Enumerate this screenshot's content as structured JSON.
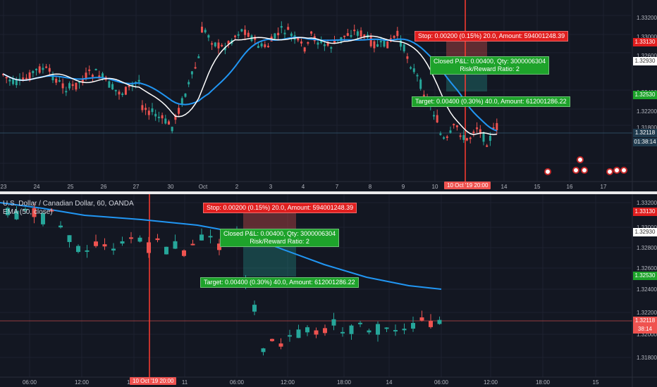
{
  "colors": {
    "bg": "#131722",
    "up": "#26a69a",
    "down": "#ef5350",
    "ema": "#2196f3",
    "sma": "#ffffff",
    "grid": "#1e2230",
    "divider": "#e9e9ea",
    "stop": "#e01f1f",
    "target": "#1ea32b",
    "vline": "#ff3b30"
  },
  "top_pane": {
    "price_scale": [
      "1.33200",
      "1.33000",
      "1.32600",
      "1.32400",
      "1.32200",
      "1.31800"
    ],
    "badges": {
      "stop": "1.33130",
      "entry": "1.32930",
      "target": "1.32530",
      "last": "1.32118",
      "countdown": "01:38:14"
    },
    "x_axis": [
      "23",
      "24",
      "25",
      "26",
      "27",
      "30",
      "Oct",
      "2",
      "3",
      "4",
      "7",
      "8",
      "9",
      "10",
      "10 Oct '19  20:00",
      "14",
      "15",
      "16",
      "17"
    ],
    "stop_label": "Stop: 0.00200 (0.15%) 20.0, Amount: 594001248.39",
    "closed_label": "Closed P&L: 0.00400, Qty: 3000006304",
    "rr_label": "Risk/Reward Ratio: 2",
    "target_label": "Target: 0.00400 (0.30%) 40.0, Amount: 612001286.22",
    "event_icons": [
      "flag-us-icon",
      "flag-us-icon",
      "flag-us-icon",
      "flag-us-icon",
      "flag-us-icon",
      "flag-us-icon",
      "flag-us-icon"
    ]
  },
  "bottom_pane": {
    "legend_title": "U.S. Dollar / Canadian Dollar, 60, OANDA",
    "legend_ema": "EMA (50, close)",
    "price_scale": [
      "1.33200",
      "1.33000",
      "1.32800",
      "1.32600",
      "1.32400",
      "1.32200",
      "1.32000",
      "1.31800"
    ],
    "badges": {
      "stop": "1.33130",
      "entry": "1.32930",
      "target": "1.32530",
      "last": "1.32118",
      "countdown": "38:14"
    },
    "x_axis": [
      "06:00",
      "12:00",
      "18:00",
      "10 Oct '19  20:00",
      "11",
      "06:00",
      "12:00",
      "18:00",
      "14",
      "06:00",
      "12:00",
      "18:00",
      "15"
    ],
    "stop_label": "Stop: 0.00200 (0.15%) 20.0, Amount: 594001248.39",
    "closed_label": "Closed P&L: 0.00400, Qty: 3000006304",
    "rr_label": "Risk/Reward Ratio: 2",
    "target_label": "Target: 0.00400 (0.30%) 40.0, Amount: 612001286.22"
  }
}
